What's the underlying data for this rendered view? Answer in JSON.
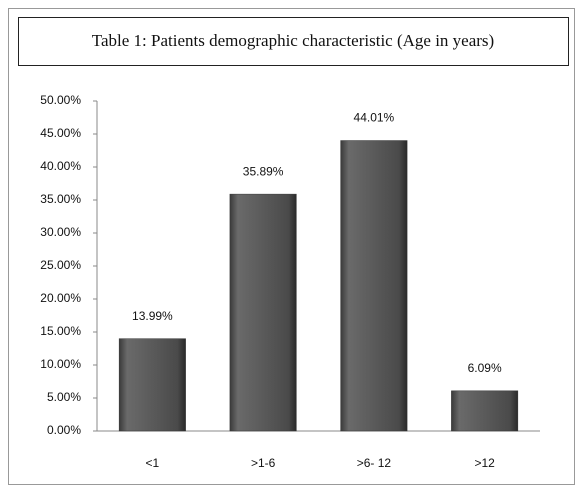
{
  "chart_data": {
    "type": "bar",
    "title": "Table 1: Patients demographic characteristic (Age in years)",
    "categories": [
      "<1",
      ">1-6",
      ">6- 12",
      ">12"
    ],
    "values": [
      13.99,
      35.89,
      44.01,
      6.09
    ],
    "value_labels": [
      "13.99%",
      "35.89%",
      "44.01%",
      "6.09%"
    ],
    "color": "#555555",
    "ylim": [
      0,
      50
    ],
    "yticks": [
      {
        "value": 0,
        "label": "0.00%"
      },
      {
        "value": 5,
        "label": "5.00%"
      },
      {
        "value": 10,
        "label": "10.00%"
      },
      {
        "value": 15,
        "label": "15.00%"
      },
      {
        "value": 20,
        "label": "20.00%"
      },
      {
        "value": 25,
        "label": "25.00%"
      },
      {
        "value": 30,
        "label": "30.00%"
      },
      {
        "value": 35,
        "label": "35.00%"
      },
      {
        "value": 40,
        "label": "40.00%"
      },
      {
        "value": 45,
        "label": "45.00%"
      },
      {
        "value": 50,
        "label": "50.00%"
      }
    ],
    "grid": false
  }
}
